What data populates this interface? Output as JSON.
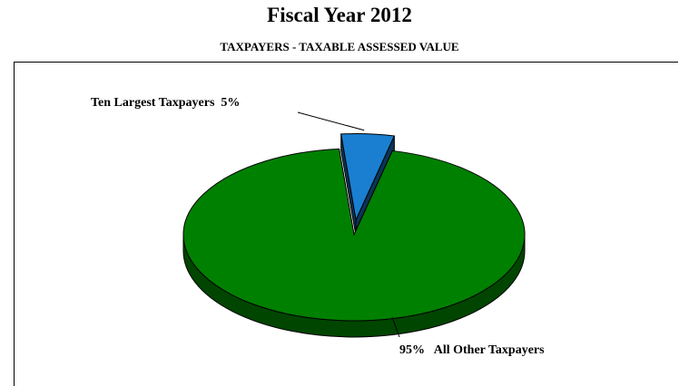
{
  "chart_data": {
    "type": "pie",
    "title": "Fiscal Year 2012",
    "subtitle": "TAXPAYERS - TAXABLE ASSESSED VALUE",
    "slices": [
      {
        "name": "Ten Largest Taxpayers",
        "value": 5,
        "label": "Ten Largest Taxpayers  5%",
        "color": "#1a7fd0",
        "exploded": true
      },
      {
        "name": "All Other Taxpayers",
        "value": 95,
        "label": "95%   All Other Taxpayers",
        "color": "#008000",
        "exploded": false
      }
    ],
    "legend": "none",
    "style": "3d"
  }
}
